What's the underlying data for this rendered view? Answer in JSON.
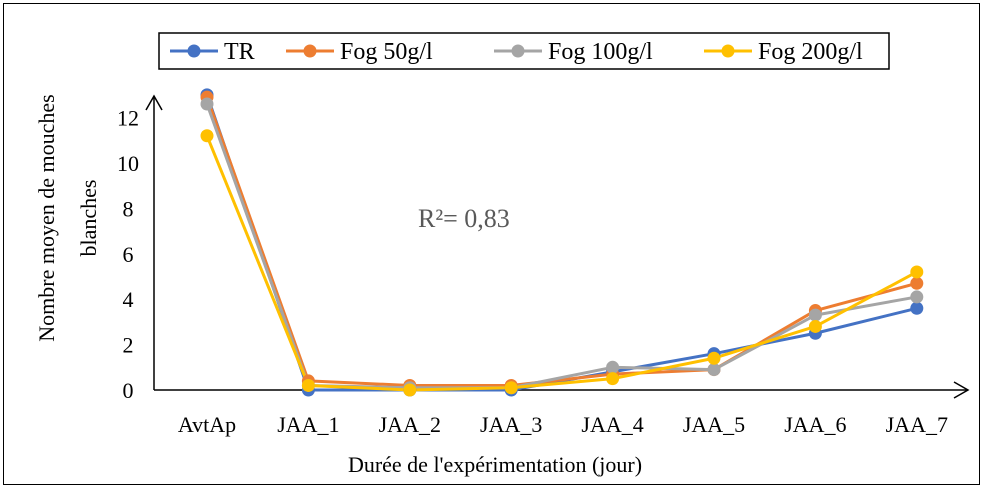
{
  "chart_data": {
    "type": "line",
    "categories": [
      "AvtAp",
      "JAA_1",
      "JAA_2",
      "JAA_3",
      "JAA_4",
      "JAA_5",
      "JAA_6",
      "JAA_7"
    ],
    "series": [
      {
        "name": "TR",
        "color": "#4472C4",
        "values": [
          13.0,
          0.0,
          0.0,
          0.0,
          0.8,
          1.6,
          2.5,
          3.6
        ]
      },
      {
        "name": "Fog 50g/l",
        "color": "#ED7D31",
        "values": [
          12.9,
          0.4,
          0.2,
          0.2,
          0.7,
          0.9,
          3.5,
          4.7
        ]
      },
      {
        "name": "Fog 100g/l",
        "color": "#A5A5A5",
        "values": [
          12.6,
          0.2,
          0.1,
          0.1,
          1.0,
          0.9,
          3.3,
          4.1
        ]
      },
      {
        "name": "Fog 200g/l",
        "color": "#FFC000",
        "values": [
          11.2,
          0.2,
          0.0,
          0.1,
          0.5,
          1.4,
          2.8,
          5.2
        ]
      }
    ],
    "yticks": [
      "0",
      "2",
      "4",
      "6",
      "8",
      "10",
      "12"
    ],
    "ylim": [
      0,
      13.5
    ],
    "ylabel_line1": "Nombre moyen de mouches",
    "ylabel_line2": "blanches",
    "xlabel": "Durée de l'expérimentation (jour)",
    "annotation": "R²= 0,83",
    "legend_position": "top",
    "grid": false
  }
}
